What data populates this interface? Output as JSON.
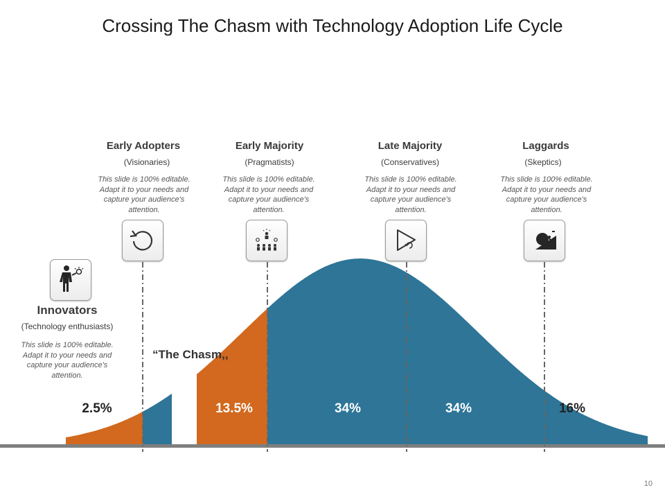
{
  "title": "Crossing The Chasm with Technology Adoption Life Cycle",
  "page_number": "10",
  "chasm_label": "“The Chasm,,",
  "colors": {
    "orange": "#d2691e",
    "blue": "#2e7597",
    "baseline": "#7f7f7f",
    "divider": "#666666"
  },
  "segments": [
    {
      "name": "Innovators",
      "subtitle": "(Technology  enthusiasts)",
      "description": "This slide is 100% editable. Adapt it to your needs and capture your audience's attention.",
      "percent": "2.5%",
      "icon": "businessman-idea-icon"
    },
    {
      "name": "Early Adopters",
      "subtitle": "(Visionaries)",
      "description": "This slide is 100% editable. Adapt it to your needs and capture your audience's attention.",
      "percent": "13.5%",
      "icon": "refresh-cycle-icon"
    },
    {
      "name": "Early Majority",
      "subtitle": "(Pragmatists)",
      "description": "This slide is 100% editable. Adapt it to your needs and capture your audience's attention.",
      "percent": "34%",
      "icon": "team-leader-icon"
    },
    {
      "name": "Late Majority",
      "subtitle": "(Conservatives)",
      "description": "This slide is 100% editable. Adapt it to your needs and capture your audience's attention.",
      "percent": "34%",
      "icon": "play-replay-icon"
    },
    {
      "name": "Laggards",
      "subtitle": "(Skeptics)",
      "description": "This slide is 100% editable. Adapt it to your needs and capture your audience's attention.",
      "percent": "16%",
      "icon": "boulder-uphill-icon"
    }
  ]
}
